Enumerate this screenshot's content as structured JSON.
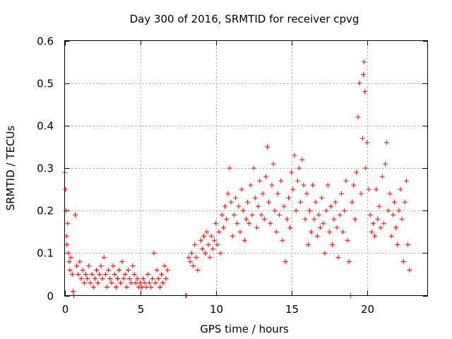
{
  "chart_data": {
    "type": "scatter",
    "title": "Day 300 of 2016, SRMTID for receiver cpvg",
    "xlabel": "GPS time / hours",
    "ylabel": "SRMTID / TECUs",
    "xlim": [
      0,
      24
    ],
    "ylim": [
      0,
      0.6
    ],
    "xticks": [
      0,
      5,
      10,
      15,
      20
    ],
    "xtick_labels": [
      "0",
      "5",
      "10",
      "15",
      "20"
    ],
    "yticks": [
      0,
      0.1,
      0.2,
      0.3,
      0.4,
      0.5,
      0.6
    ],
    "ytick_labels": [
      "0",
      "0.1",
      "0.2",
      "0.3",
      "0.4",
      "0.5",
      "0.6"
    ],
    "grid": true,
    "marker": "+",
    "series": [
      {
        "name": "SRMTID",
        "color": "#ff0000",
        "points": [
          [
            0.0,
            0.29
          ],
          [
            0.05,
            0.25
          ],
          [
            0.1,
            0.2
          ],
          [
            0.12,
            0.14
          ],
          [
            0.15,
            0.12
          ],
          [
            0.2,
            0.17
          ],
          [
            0.25,
            0.1
          ],
          [
            0.3,
            0.08
          ],
          [
            0.35,
            0.06
          ],
          [
            0.4,
            0.09
          ],
          [
            0.5,
            0.05
          ],
          [
            0.55,
            0.01
          ],
          [
            0.6,
            0.0
          ],
          [
            0.7,
            0.19
          ],
          [
            0.8,
            0.07
          ],
          [
            0.9,
            0.05
          ],
          [
            1.0,
            0.08
          ],
          [
            1.1,
            0.04
          ],
          [
            1.2,
            0.06
          ],
          [
            1.3,
            0.03
          ],
          [
            1.4,
            0.05
          ],
          [
            1.5,
            0.04
          ],
          [
            1.6,
            0.07
          ],
          [
            1.7,
            0.03
          ],
          [
            1.8,
            0.05
          ],
          [
            1.9,
            0.02
          ],
          [
            2.0,
            0.04
          ],
          [
            2.1,
            0.06
          ],
          [
            2.2,
            0.03
          ],
          [
            2.3,
            0.05
          ],
          [
            2.4,
            0.07
          ],
          [
            2.5,
            0.04
          ],
          [
            2.6,
            0.09
          ],
          [
            2.7,
            0.05
          ],
          [
            2.8,
            0.02
          ],
          [
            2.9,
            0.06
          ],
          [
            3.0,
            0.04
          ],
          [
            3.1,
            0.03
          ],
          [
            3.2,
            0.07
          ],
          [
            3.3,
            0.05
          ],
          [
            3.4,
            0.02
          ],
          [
            3.5,
            0.04
          ],
          [
            3.6,
            0.06
          ],
          [
            3.7,
            0.03
          ],
          [
            3.8,
            0.08
          ],
          [
            3.9,
            0.04
          ],
          [
            4.0,
            0.05
          ],
          [
            4.1,
            0.02
          ],
          [
            4.2,
            0.06
          ],
          [
            4.3,
            0.04
          ],
          [
            4.4,
            0.03
          ],
          [
            4.5,
            0.07
          ],
          [
            4.6,
            0.05
          ],
          [
            4.7,
            0.03
          ],
          [
            4.8,
            0.04
          ],
          [
            4.9,
            0.02
          ],
          [
            5.0,
            0.03
          ],
          [
            5.1,
            0.02
          ],
          [
            5.2,
            0.04
          ],
          [
            5.3,
            0.03
          ],
          [
            5.4,
            0.02
          ],
          [
            5.5,
            0.05
          ],
          [
            5.6,
            0.03
          ],
          [
            5.7,
            0.02
          ],
          [
            5.8,
            0.04
          ],
          [
            5.9,
            0.1
          ],
          [
            6.0,
            0.03
          ],
          [
            6.1,
            0.06
          ],
          [
            6.2,
            0.04
          ],
          [
            6.3,
            0.02
          ],
          [
            6.4,
            0.05
          ],
          [
            6.5,
            0.03
          ],
          [
            6.6,
            0.07
          ],
          [
            6.7,
            0.04
          ],
          [
            6.8,
            0.06
          ],
          [
            8.0,
            0.0
          ],
          [
            8.05,
            0.0
          ],
          [
            8.2,
            0.09
          ],
          [
            8.3,
            0.08
          ],
          [
            8.4,
            0.1
          ],
          [
            8.5,
            0.07
          ],
          [
            8.6,
            0.12
          ],
          [
            8.7,
            0.09
          ],
          [
            8.8,
            0.06
          ],
          [
            9.0,
            0.13
          ],
          [
            9.1,
            0.11
          ],
          [
            9.2,
            0.14
          ],
          [
            9.3,
            0.1
          ],
          [
            9.4,
            0.15
          ],
          [
            9.5,
            0.12
          ],
          [
            9.6,
            0.09
          ],
          [
            9.7,
            0.14
          ],
          [
            9.8,
            0.11
          ],
          [
            9.9,
            0.13
          ],
          [
            10.0,
            0.17
          ],
          [
            10.1,
            0.12
          ],
          [
            10.2,
            0.15
          ],
          [
            10.3,
            0.1
          ],
          [
            10.4,
            0.19
          ],
          [
            10.5,
            0.16
          ],
          [
            10.6,
            0.21
          ],
          [
            10.7,
            0.18
          ],
          [
            10.8,
            0.24
          ],
          [
            10.9,
            0.3
          ],
          [
            11.0,
            0.22
          ],
          [
            11.1,
            0.14
          ],
          [
            11.2,
            0.19
          ],
          [
            11.3,
            0.23
          ],
          [
            11.4,
            0.17
          ],
          [
            11.5,
            0.21
          ],
          [
            11.6,
            0.15
          ],
          [
            11.7,
            0.25
          ],
          [
            11.8,
            0.2
          ],
          [
            11.9,
            0.13
          ],
          [
            12.0,
            0.18
          ],
          [
            12.1,
            0.22
          ],
          [
            12.2,
            0.17
          ],
          [
            12.3,
            0.26
          ],
          [
            12.4,
            0.19
          ],
          [
            12.5,
            0.3
          ],
          [
            12.6,
            0.23
          ],
          [
            12.7,
            0.16
          ],
          [
            12.8,
            0.21
          ],
          [
            12.9,
            0.27
          ],
          [
            13.0,
            0.19
          ],
          [
            13.1,
            0.24
          ],
          [
            13.2,
            0.18
          ],
          [
            13.3,
            0.28
          ],
          [
            13.4,
            0.35
          ],
          [
            13.5,
            0.22
          ],
          [
            13.6,
            0.17
          ],
          [
            13.7,
            0.26
          ],
          [
            13.8,
            0.31
          ],
          [
            13.9,
            0.2
          ],
          [
            14.0,
            0.15
          ],
          [
            14.1,
            0.24
          ],
          [
            14.2,
            0.19
          ],
          [
            14.3,
            0.27
          ],
          [
            14.4,
            0.13
          ],
          [
            14.5,
            0.21
          ],
          [
            14.6,
            0.08
          ],
          [
            14.7,
            0.18
          ],
          [
            14.8,
            0.23
          ],
          [
            14.9,
            0.16
          ],
          [
            15.0,
            0.29
          ],
          [
            15.1,
            0.25
          ],
          [
            15.2,
            0.33
          ],
          [
            15.3,
            0.2
          ],
          [
            15.4,
            0.27
          ],
          [
            15.5,
            0.3
          ],
          [
            15.6,
            0.22
          ],
          [
            15.7,
            0.32
          ],
          [
            15.8,
            0.26
          ],
          [
            15.9,
            0.18
          ],
          [
            16.0,
            0.24
          ],
          [
            16.1,
            0.12
          ],
          [
            16.2,
            0.2
          ],
          [
            16.3,
            0.15
          ],
          [
            16.4,
            0.26
          ],
          [
            16.5,
            0.18
          ],
          [
            16.6,
            0.22
          ],
          [
            16.7,
            0.14
          ],
          [
            16.8,
            0.19
          ],
          [
            16.9,
            0.16
          ],
          [
            17.0,
            0.23
          ],
          [
            17.1,
            0.17
          ],
          [
            17.2,
            0.1
          ],
          [
            17.3,
            0.2
          ],
          [
            17.4,
            0.26
          ],
          [
            17.5,
            0.15
          ],
          [
            17.6,
            0.21
          ],
          [
            17.7,
            0.12
          ],
          [
            17.8,
            0.18
          ],
          [
            17.9,
            0.22
          ],
          [
            18.0,
            0.16
          ],
          [
            18.1,
            0.09
          ],
          [
            18.2,
            0.19
          ],
          [
            18.3,
            0.24
          ],
          [
            18.4,
            0.15
          ],
          [
            18.5,
            0.2
          ],
          [
            18.6,
            0.27
          ],
          [
            18.7,
            0.13
          ],
          [
            18.8,
            0.08
          ],
          [
            18.9,
            0.0
          ],
          [
            19.0,
            0.22
          ],
          [
            19.1,
            0.26
          ],
          [
            19.2,
            0.18
          ],
          [
            19.3,
            0.29
          ],
          [
            19.4,
            0.42
          ],
          [
            19.5,
            0.5
          ],
          [
            19.6,
            0.24
          ],
          [
            19.7,
            0.37
          ],
          [
            19.75,
            0.52
          ],
          [
            19.8,
            0.55
          ],
          [
            19.85,
            0.48
          ],
          [
            19.9,
            0.3
          ],
          [
            20.0,
            0.36
          ],
          [
            20.1,
            0.25
          ],
          [
            20.2,
            0.19
          ],
          [
            20.3,
            0.15
          ],
          [
            20.4,
            0.17
          ],
          [
            20.5,
            0.14
          ],
          [
            20.6,
            0.25
          ],
          [
            20.7,
            0.18
          ],
          [
            20.8,
            0.21
          ],
          [
            20.9,
            0.16
          ],
          [
            21.0,
            0.28
          ],
          [
            21.1,
            0.17
          ],
          [
            21.2,
            0.31
          ],
          [
            21.3,
            0.36
          ],
          [
            21.4,
            0.2
          ],
          [
            21.5,
            0.24
          ],
          [
            21.6,
            0.14
          ],
          [
            21.7,
            0.19
          ],
          [
            21.8,
            0.22
          ],
          [
            21.9,
            0.16
          ],
          [
            22.0,
            0.12
          ],
          [
            22.1,
            0.2
          ],
          [
            22.2,
            0.25
          ],
          [
            22.3,
            0.18
          ],
          [
            22.4,
            0.08
          ],
          [
            22.5,
            0.22
          ],
          [
            22.6,
            0.27
          ],
          [
            22.7,
            0.12
          ],
          [
            22.8,
            0.06
          ]
        ]
      }
    ]
  }
}
